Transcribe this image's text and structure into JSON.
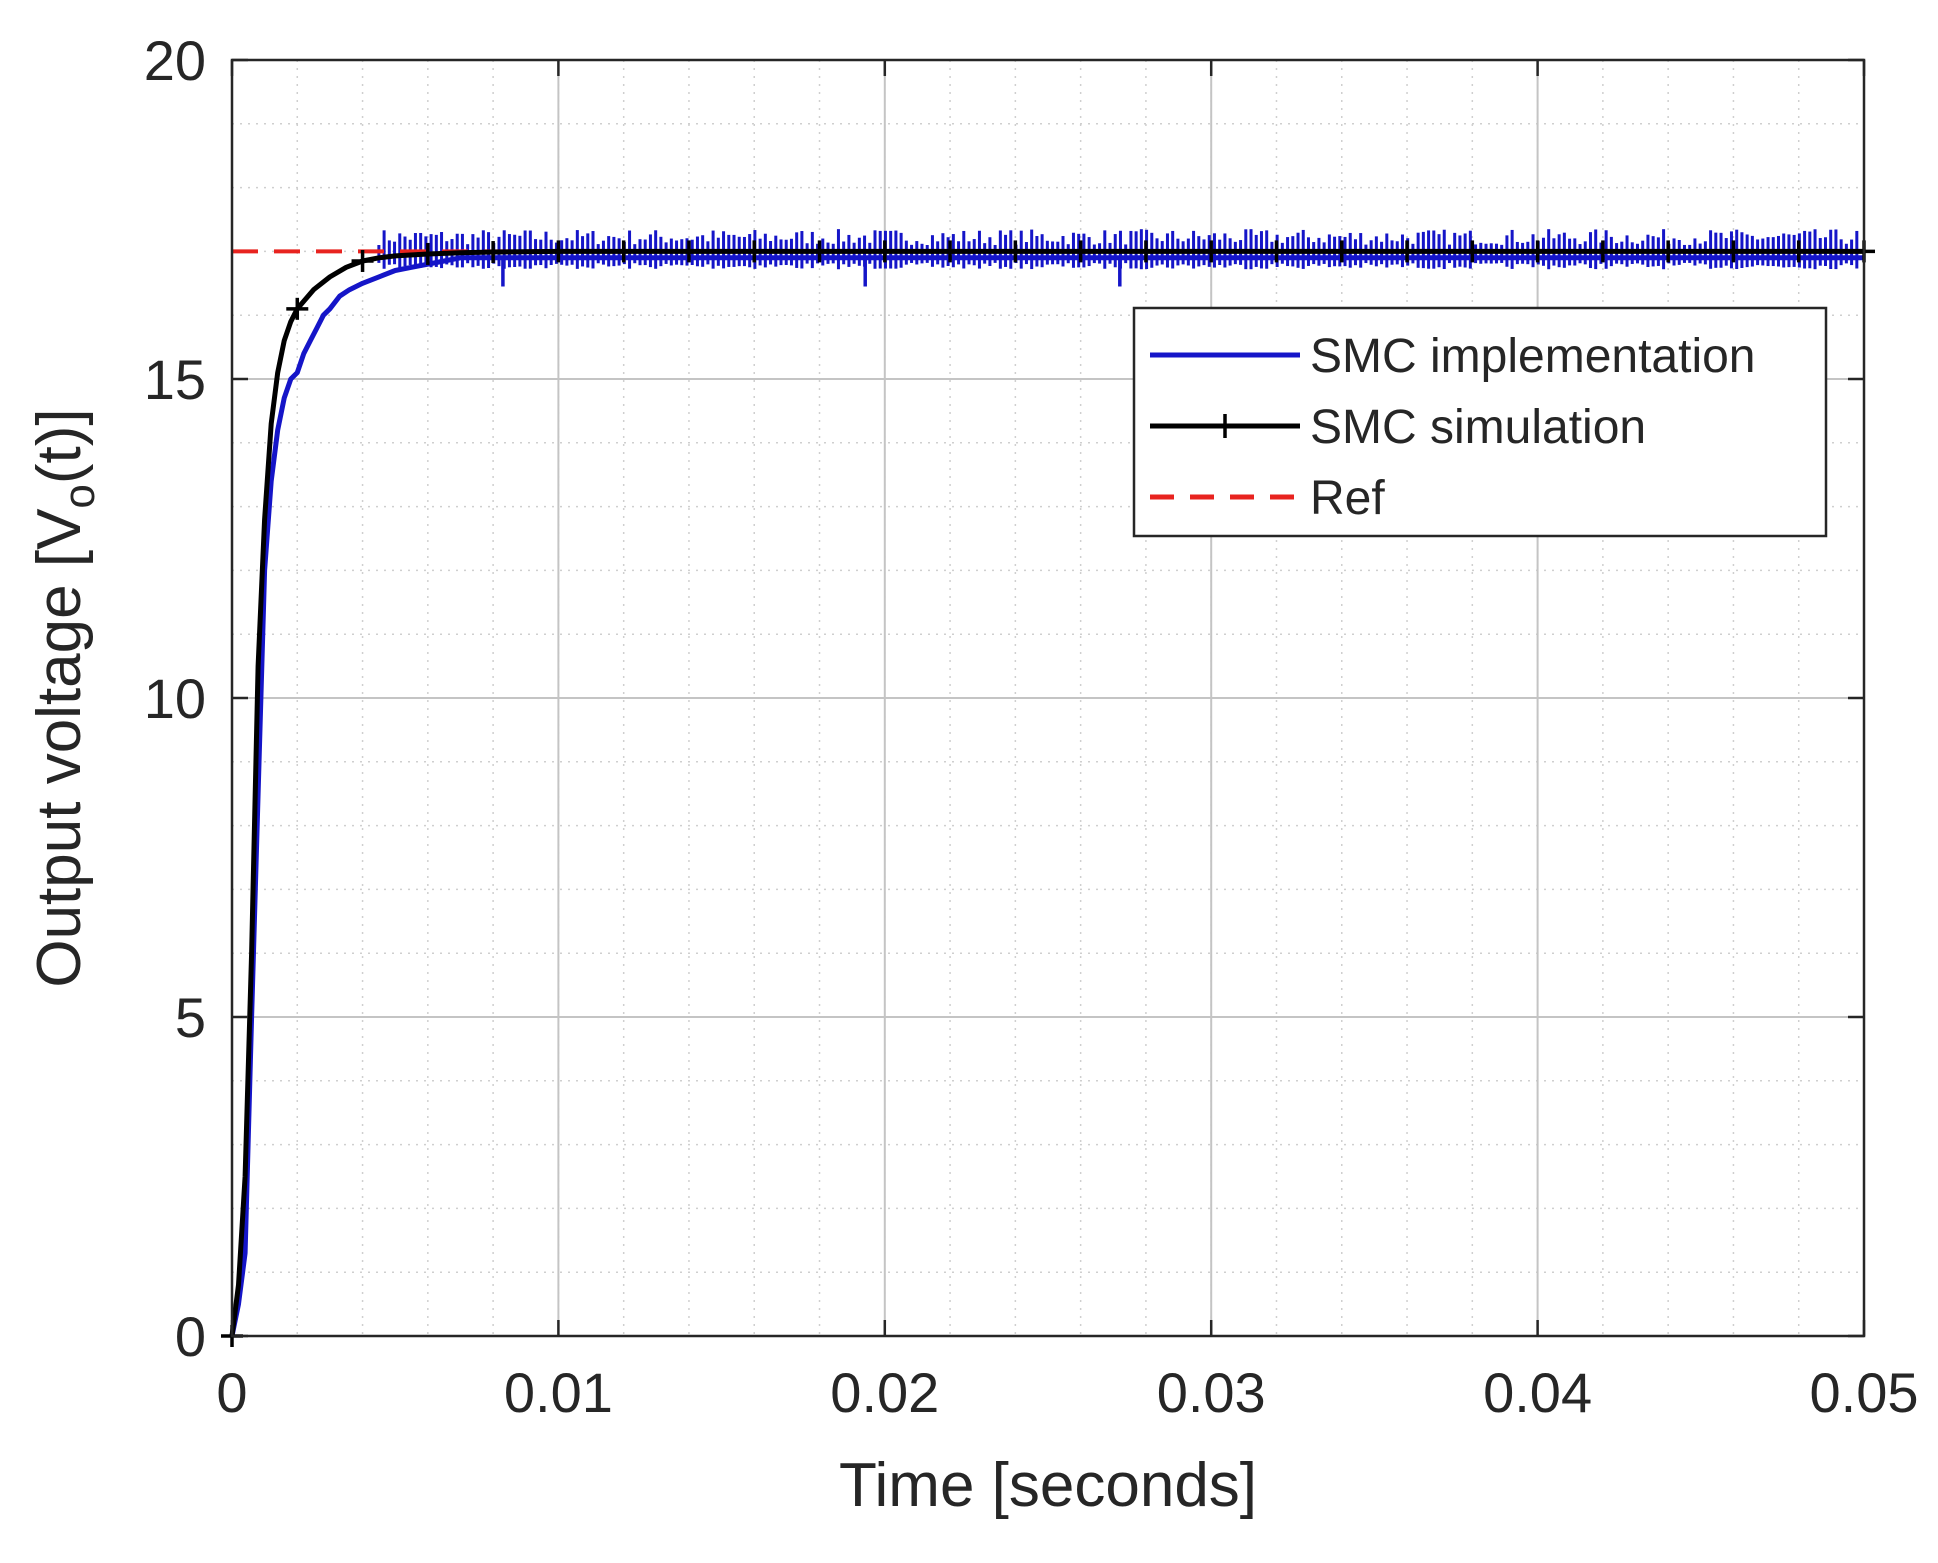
{
  "chart_data": {
    "type": "line",
    "xlabel": "Time [seconds]",
    "ylabel_main": "Output voltage [V",
    "ylabel_sub": "o",
    "ylabel_tail": "(t)]",
    "xlim": [
      0,
      0.05
    ],
    "ylim": [
      0,
      20
    ],
    "x_ticks": [
      0,
      0.01,
      0.02,
      0.03,
      0.04,
      0.05
    ],
    "x_tick_labels": [
      "0",
      "0.01",
      "0.02",
      "0.03",
      "0.04",
      "0.05"
    ],
    "y_ticks": [
      0,
      5,
      10,
      15,
      20
    ],
    "y_tick_labels": [
      "0",
      "5",
      "10",
      "15",
      "20"
    ],
    "x_minor_step": 0.002,
    "y_minor_step": 1,
    "grid": true,
    "minor_grid": true,
    "legend_position": "top-right",
    "series": [
      {
        "name": "SMC implementation",
        "color": "#1515c8",
        "style": "solid-noisy",
        "x": [
          0,
          0.0002,
          0.0004,
          0.0006,
          0.0008,
          0.001,
          0.0012,
          0.0014,
          0.0016,
          0.0018,
          0.002,
          0.0022,
          0.0024,
          0.0026,
          0.0028,
          0.003,
          0.0033,
          0.0036,
          0.004,
          0.0045,
          0.005,
          0.0055,
          0.006,
          0.0065,
          0.007,
          0.0075,
          0.008,
          0.01,
          0.015,
          0.02,
          0.025,
          0.03,
          0.035,
          0.04,
          0.045,
          0.05
        ],
        "y": [
          0,
          0.5,
          1.3,
          5.0,
          8.5,
          12.0,
          13.4,
          14.2,
          14.7,
          15.0,
          15.1,
          15.4,
          15.6,
          15.8,
          16.0,
          16.1,
          16.3,
          16.4,
          16.5,
          16.6,
          16.7,
          16.75,
          16.8,
          16.85,
          16.9,
          16.9,
          16.9,
          16.9,
          16.9,
          16.9,
          16.9,
          16.9,
          16.9,
          16.9,
          16.9,
          16.9
        ]
      },
      {
        "name": "SMC simulation",
        "color": "#000000",
        "style": "solid-plus-markers",
        "x": [
          0,
          0.0002,
          0.0004,
          0.0006,
          0.0008,
          0.001,
          0.0012,
          0.0014,
          0.0016,
          0.0018,
          0.002,
          0.0025,
          0.003,
          0.0035,
          0.004,
          0.0045,
          0.005,
          0.006,
          0.007,
          0.008,
          0.01,
          0.015,
          0.02,
          0.025,
          0.03,
          0.035,
          0.04,
          0.045,
          0.05
        ],
        "y": [
          0,
          0.8,
          2.5,
          6.0,
          10.5,
          12.8,
          14.3,
          15.1,
          15.6,
          15.9,
          16.1,
          16.4,
          16.6,
          16.75,
          16.85,
          16.9,
          16.93,
          16.96,
          16.98,
          16.99,
          17.0,
          17.0,
          17.0,
          17.0,
          17.0,
          17.0,
          17.0,
          17.0,
          17.0
        ],
        "marker_x": [
          0,
          0.002,
          0.004,
          0.006,
          0.008,
          0.01,
          0.012,
          0.014,
          0.016,
          0.018,
          0.02,
          0.022,
          0.024,
          0.026,
          0.028,
          0.03,
          0.032,
          0.034,
          0.036,
          0.038,
          0.04,
          0.042,
          0.044,
          0.046,
          0.048,
          0.05
        ]
      },
      {
        "name": "Ref",
        "color": "#e8231f",
        "style": "dashed",
        "x": [
          0,
          0.05
        ],
        "y": [
          17.0,
          17.0
        ]
      }
    ]
  }
}
